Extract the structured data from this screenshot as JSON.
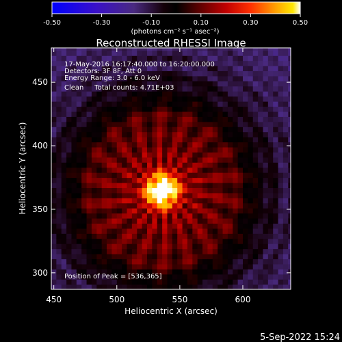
{
  "chart_data": {
    "type": "heatmap",
    "title": "Reconstructed RHESSI Image",
    "xlabel": "Heliocentric X (arcsec)",
    "ylabel": "Heliocentric Y (arcsec)",
    "xlim": [
      448,
      638
    ],
    "ylim": [
      287,
      477
    ],
    "x_ticks": [
      450,
      500,
      550,
      600
    ],
    "y_ticks": [
      300,
      350,
      400,
      450
    ],
    "colorbar": {
      "range": [
        -0.5,
        0.5
      ],
      "ticks": [
        "-0.50",
        "-0.30",
        "-0.10",
        "0.10",
        "0.30",
        "0.50"
      ],
      "unit_label": "(photons cm⁻² s⁻¹ asec⁻²)",
      "colormap": [
        "#0000ff",
        "#4000c0",
        "#4a2a80",
        "#1a0010",
        "#000000",
        "#400000",
        "#a00000",
        "#ff2000",
        "#ff9000",
        "#ffe000",
        "#ffffff"
      ]
    },
    "peak": {
      "x": 536,
      "y": 365
    },
    "annotations": [
      "17-May-2016 16:17:40.000 to 16:20:00.000",
      "Detectors: 3F 8F, Att 0",
      "Energy Range: 3.0 - 6.0 keV",
      "Clean     Total counts: 4.71E+03"
    ],
    "peak_label": "Position of Peak = [536,365]",
    "footer": "5-Sep-2022 15:24",
    "grid": false
  }
}
